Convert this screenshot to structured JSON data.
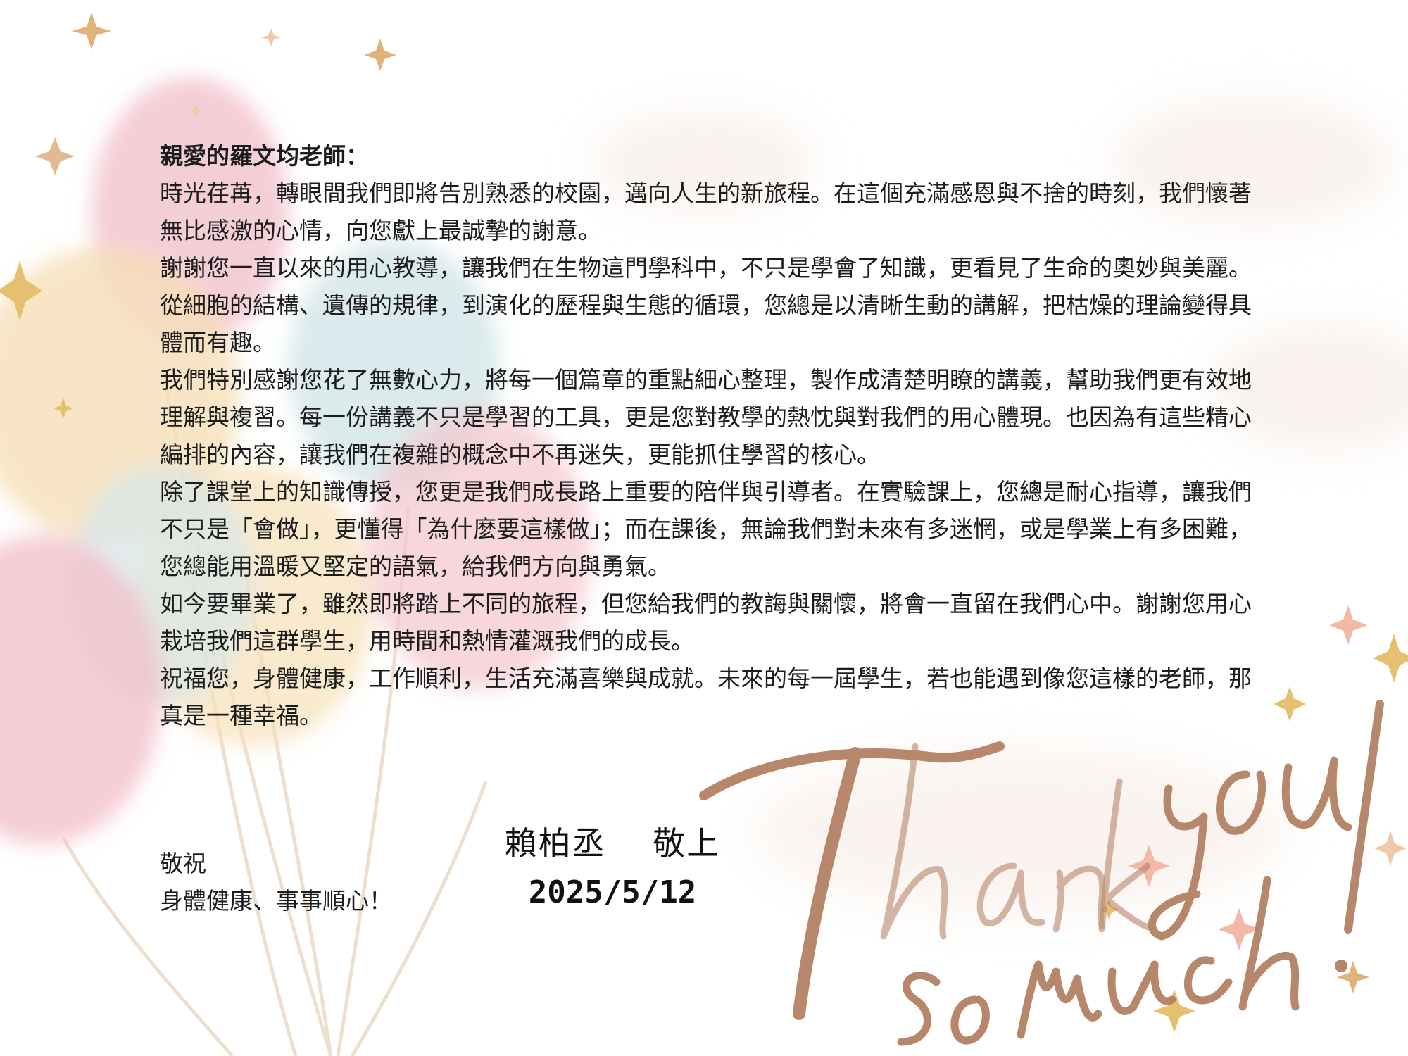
{
  "letter": {
    "greeting": "親愛的羅文均老師：",
    "paragraphs": [
      "時光荏苒，轉眼間我們即將告別熟悉的校園，邁向人生的新旅程。在這個充滿感恩與不捨的時刻，我們懷著無比感激的心情，向您獻上最誠摯的謝意。",
      "謝謝您一直以來的用心教導，讓我們在生物這門學科中，不只是學會了知識，更看見了生命的奧妙與美麗。從細胞的結構、遺傳的規律，到演化的歷程與生態的循環，您總是以清晰生動的講解，把枯燥的理論變得具體而有趣。",
      "我們特別感謝您花了無數心力，將每一個篇章的重點細心整理，製作成清楚明瞭的講義，幫助我們更有效地理解與複習。每一份講義不只是學習的工具，更是您對教學的熱忱與對我們的用心體現。也因為有這些精心編排的內容，讓我們在複雜的概念中不再迷失，更能抓住學習的核心。",
      "除了課堂上的知識傳授，您更是我們成長路上重要的陪伴與引導者。在實驗課上，您總是耐心指導，讓我們不只是「會做」，更懂得「為什麼要這樣做」；而在課後，無論我們對未來有多迷惘，或是學業上有多困難，您總能用溫暖又堅定的語氣，給我們方向與勇氣。",
      "如今要畢業了，雖然即將踏上不同的旅程，但您給我們的教誨與關懷，將會一直留在我們心中。謝謝您用心栽培我們這群學生，用時間和熱情灌溉我們的成長。",
      "祝福您，身體健康，工作順利，生活充滿喜樂與成就。未來的每一屆學生，若也能遇到像您這樣的老師，那真是一種幸福。"
    ]
  },
  "closing": {
    "line1": "敬祝",
    "line2": "身體健康、事事順心！"
  },
  "signature": {
    "name": "賴柏丞    敬上",
    "date": "2025/5/12"
  },
  "decoration": {
    "script_line1": "Thank you",
    "script_line2": "so much!",
    "script_color": "#b07a5c",
    "balloon_colors": [
      "#f1c2cd",
      "#f6dfb8",
      "#cfe3e6",
      "#f3c6cf"
    ],
    "sparkle_colors": [
      "#e0b27c",
      "#f0c9a8",
      "#d9b26a"
    ]
  }
}
